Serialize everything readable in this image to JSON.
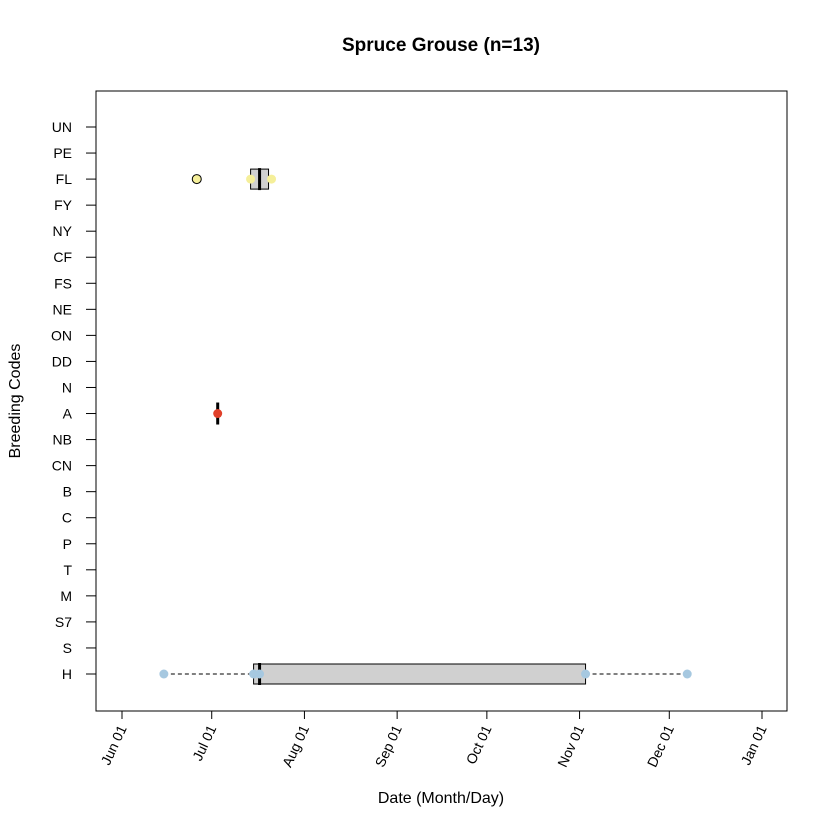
{
  "chart_data": {
    "type": "boxplot",
    "title": "Spruce Grouse (n=13)",
    "xlabel": "Date (Month/Day)",
    "ylabel": "Breeding Codes",
    "x_ticks": [
      "Jun 01",
      "Jul 01",
      "Aug 01",
      "Sep 01",
      "Oct 01",
      "Nov 01",
      "Dec 01",
      "Jan 01"
    ],
    "categories": [
      "UN",
      "PE",
      "FL",
      "FY",
      "NY",
      "CF",
      "FS",
      "NE",
      "ON",
      "DD",
      "N",
      "A",
      "NB",
      "CN",
      "B",
      "C",
      "P",
      "T",
      "M",
      "S7",
      "S",
      "H"
    ],
    "grid": false,
    "series": [
      {
        "category": "FL",
        "color": "#f5ef9a",
        "box": {
          "q1": "Jul 14",
          "median": "Jul 17",
          "q3": "Jul 20",
          "whisker_low": "Jul 14",
          "whisker_high": "Jul 21"
        },
        "points": [
          "Jul 14",
          "Jul 21"
        ],
        "outliers": [
          "Jun 26"
        ]
      },
      {
        "category": "A",
        "color": "#e0402a",
        "box": {
          "q1": "Jul 03",
          "median": "Jul 03",
          "q3": "Jul 03",
          "whisker_low": "Jul 03",
          "whisker_high": "Jul 03"
        },
        "points": [
          "Jul 03"
        ],
        "outliers": []
      },
      {
        "category": "H",
        "color": "#a6c8e0",
        "box": {
          "q1": "Jul 15",
          "median": "Jul 17",
          "q3": "Nov 03",
          "whisker_low": "Jun 15",
          "whisker_high": "Dec 07"
        },
        "points": [
          "Jun 15",
          "Jul 15",
          "Jul 17",
          "Nov 03",
          "Dec 07"
        ],
        "outliers": []
      }
    ]
  }
}
